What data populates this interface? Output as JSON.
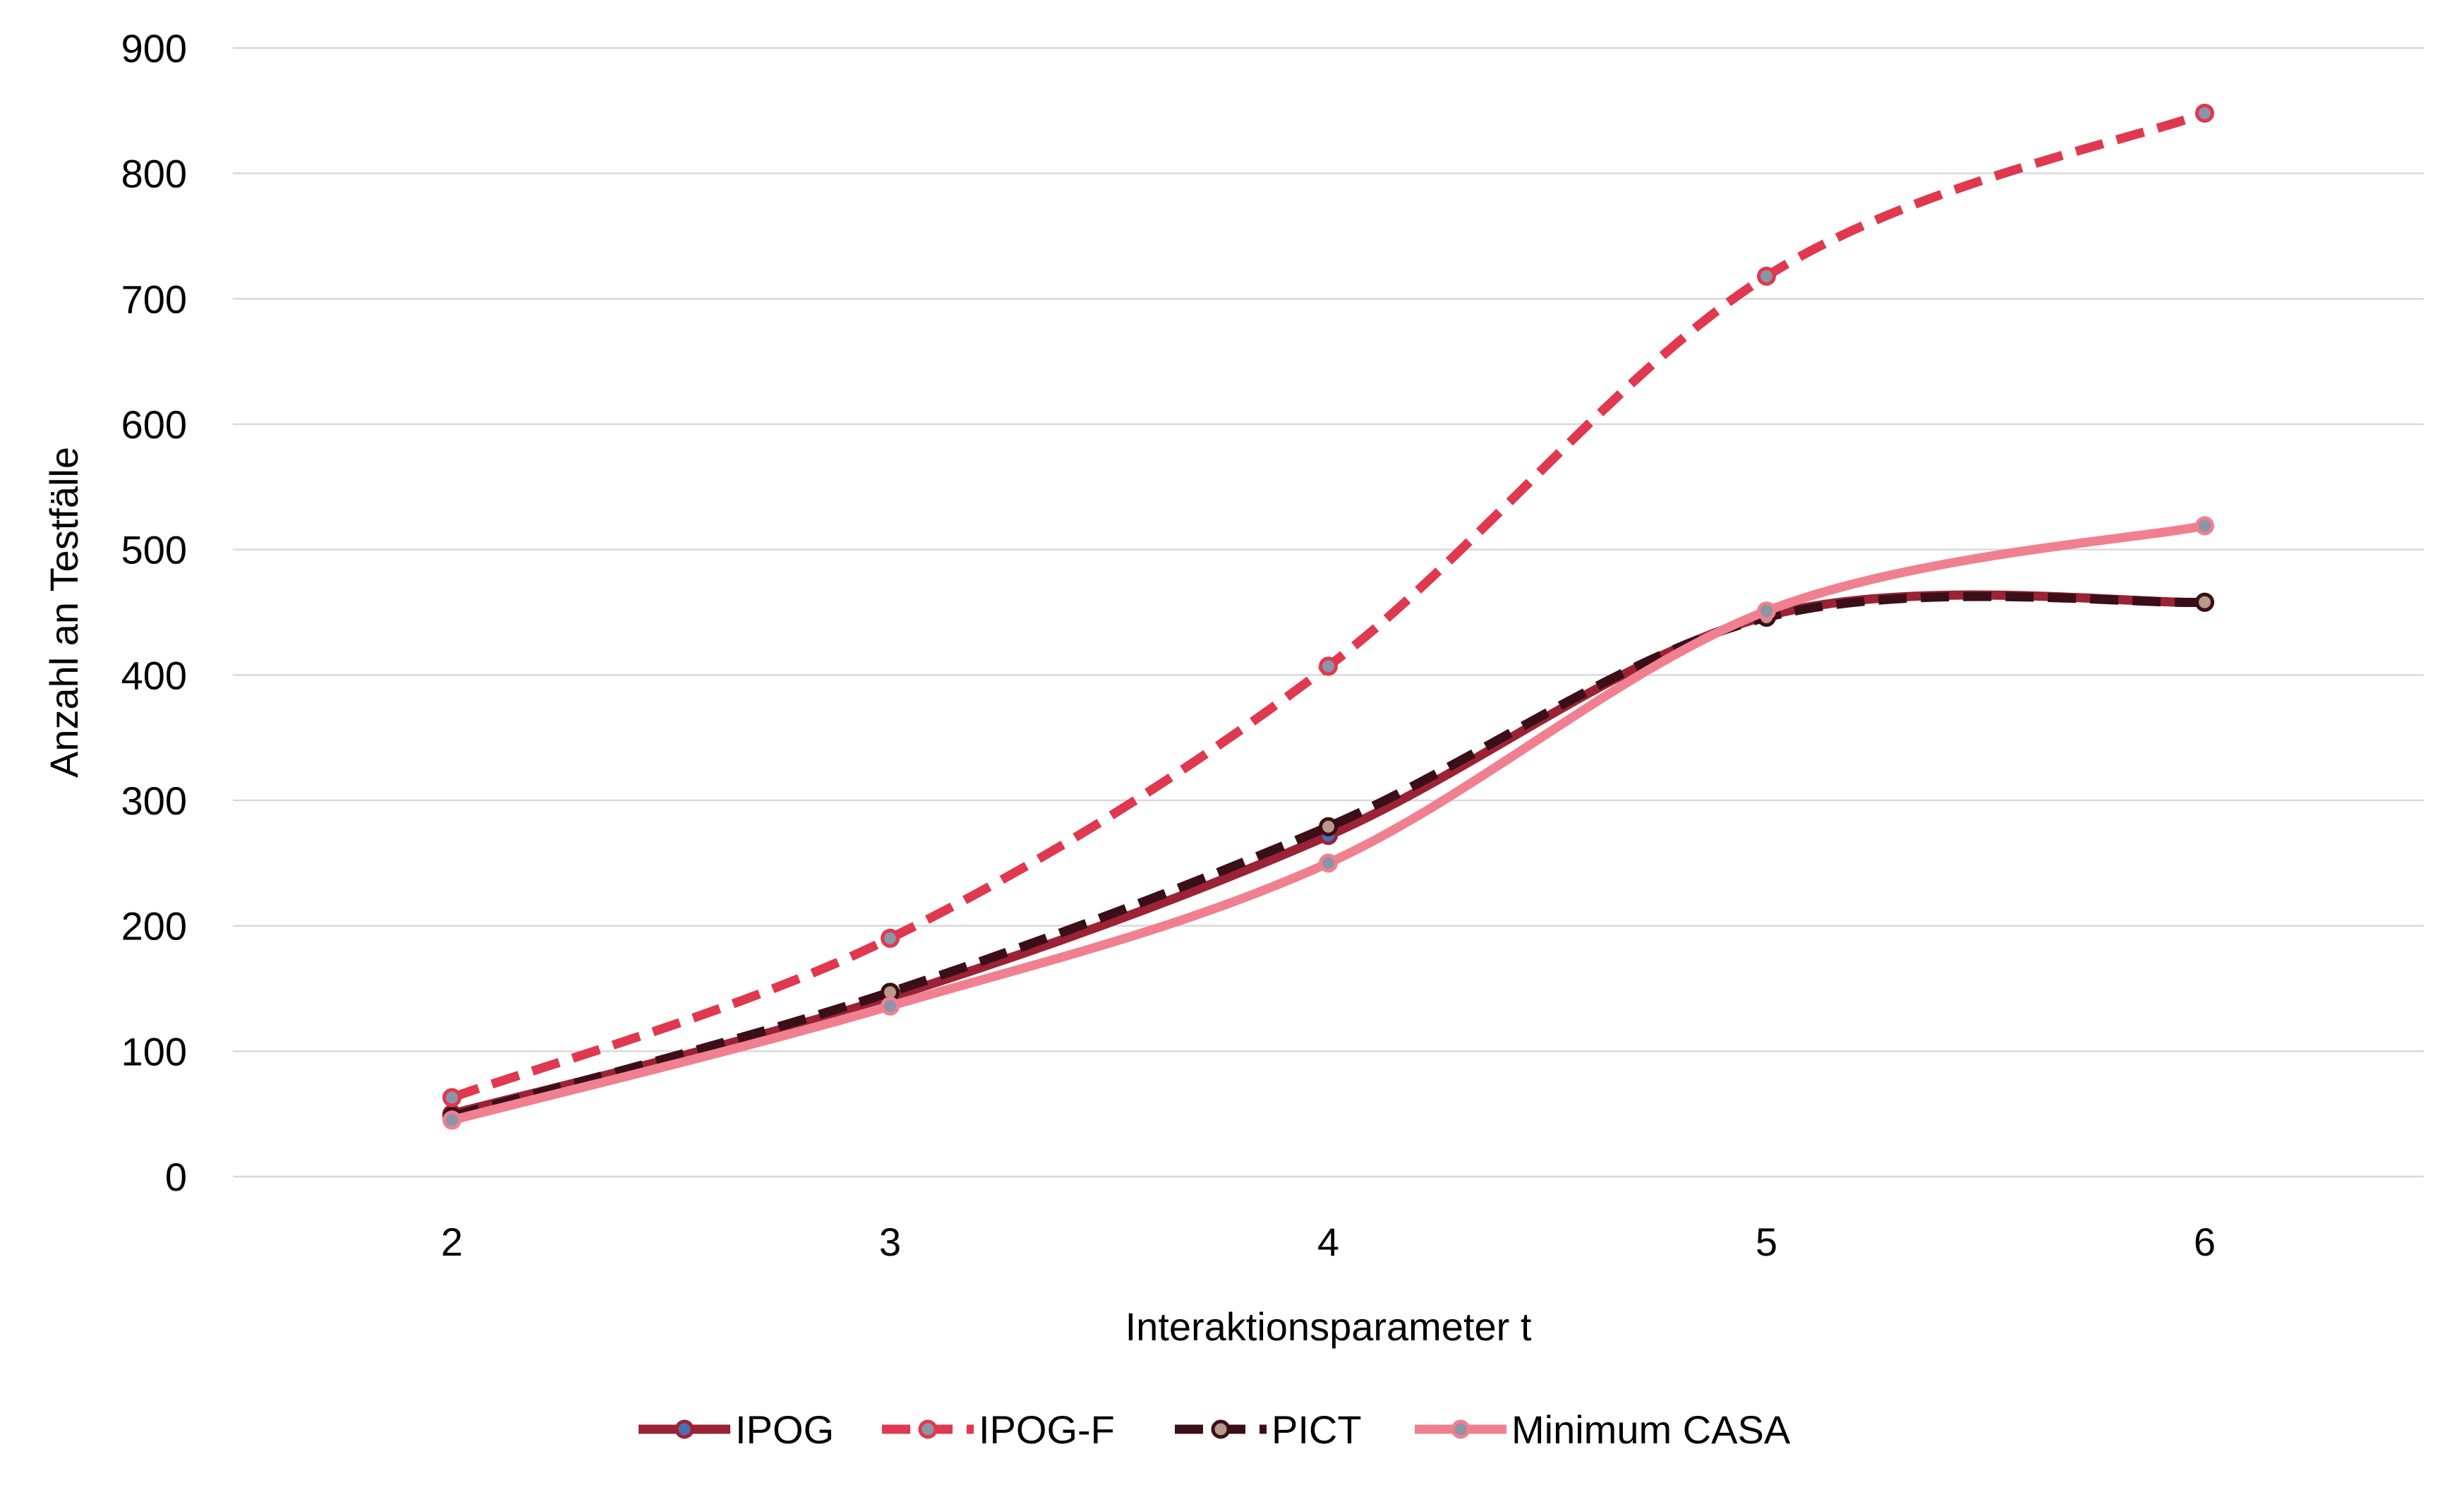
{
  "chart_data": {
    "type": "line",
    "title": "",
    "xlabel": "Interaktionsparameter t",
    "ylabel": "Anzahl an Testfälle",
    "x": [
      2,
      3,
      4,
      5,
      6
    ],
    "xlim": [
      1.5,
      6.5
    ],
    "ylim": [
      0,
      900
    ],
    "yticks": [
      0,
      100,
      200,
      300,
      400,
      500,
      600,
      700,
      800,
      900
    ],
    "grid": true,
    "legend_position": "bottom",
    "smooth": true,
    "series": [
      {
        "name": "IPOG",
        "values": [
          50,
          143,
          272,
          447,
          458
        ],
        "color": "#9b2335",
        "marker_fill": "#4a6fb5",
        "dash": "solid"
      },
      {
        "name": "IPOG-F",
        "values": [
          63,
          190,
          407,
          718,
          848
        ],
        "color": "#e0384f",
        "marker_fill": "#8a95a8",
        "dash": "dashed"
      },
      {
        "name": "PICT",
        "values": [
          48,
          147,
          279,
          446,
          458
        ],
        "color": "#3b0f17",
        "marker_fill": "#b89a8a",
        "dash": "dashed"
      },
      {
        "name": "Minimum CASA",
        "values": [
          45,
          136,
          250,
          451,
          519
        ],
        "color": "#f08090",
        "marker_fill": "#8a95a8",
        "dash": "solid"
      }
    ]
  }
}
